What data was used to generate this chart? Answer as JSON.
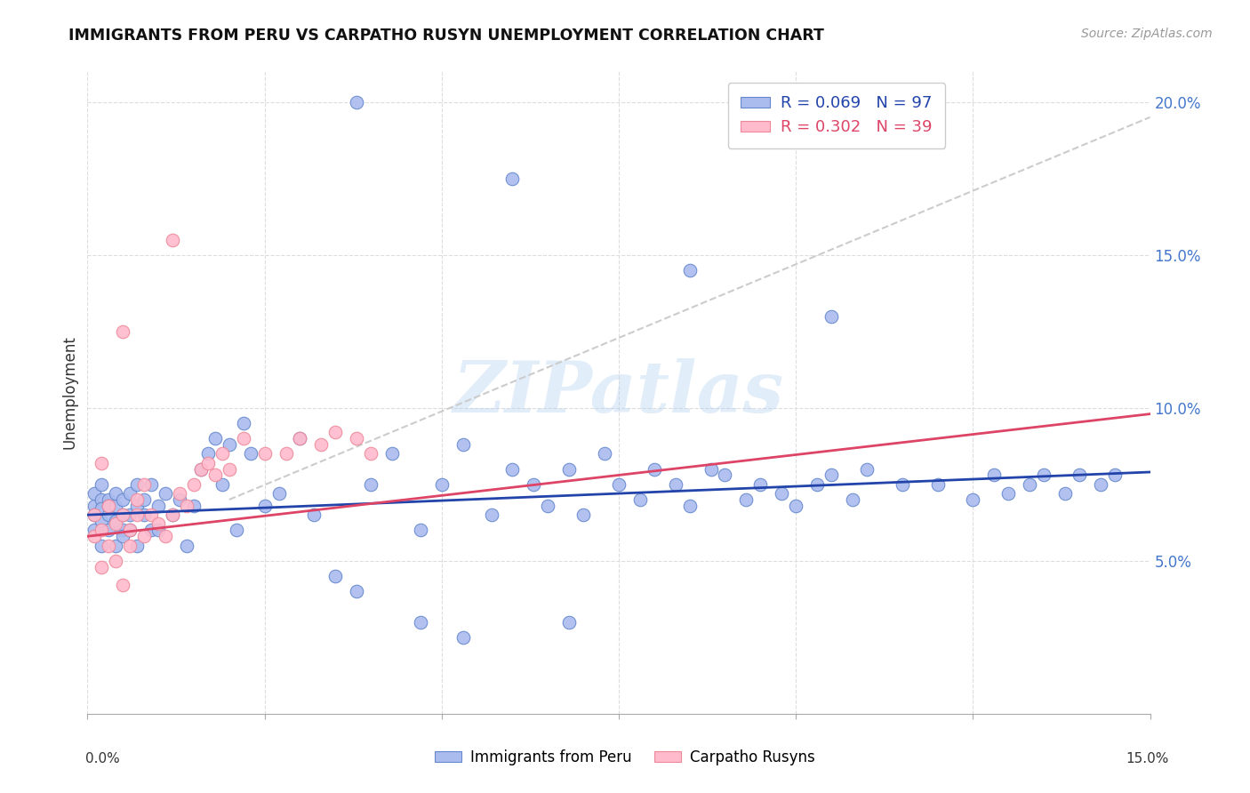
{
  "title": "IMMIGRANTS FROM PERU VS CARPATHO RUSYN UNEMPLOYMENT CORRELATION CHART",
  "source": "Source: ZipAtlas.com",
  "ylabel": "Unemployment",
  "blue_color": "#aabbee",
  "blue_edge_color": "#6688cc",
  "pink_color": "#ffbbcc",
  "pink_edge_color": "#ee8899",
  "blue_line_color": "#2244aa",
  "pink_line_color": "#dd4466",
  "dashed_line_color": "#cccccc",
  "ytick_color": "#4477cc",
  "xmin": 0.0,
  "xmax": 0.15,
  "ymin": 0.0,
  "ymax": 0.21,
  "peru_line_x": [
    0.0,
    0.15
  ],
  "peru_line_y": [
    0.065,
    0.079
  ],
  "rusyn_line_x": [
    0.0,
    0.15
  ],
  "rusyn_line_y": [
    0.058,
    0.098
  ],
  "dash_line_x": [
    0.02,
    0.15
  ],
  "dash_line_y": [
    0.07,
    0.195
  ],
  "peru_x": [
    0.001,
    0.001,
    0.001,
    0.001,
    0.002,
    0.002,
    0.002,
    0.002,
    0.002,
    0.003,
    0.003,
    0.003,
    0.003,
    0.004,
    0.004,
    0.004,
    0.004,
    0.005,
    0.005,
    0.005,
    0.005,
    0.006,
    0.006,
    0.006,
    0.007,
    0.007,
    0.007,
    0.008,
    0.008,
    0.009,
    0.009,
    0.01,
    0.01,
    0.011,
    0.012,
    0.013,
    0.014,
    0.015,
    0.016,
    0.017,
    0.018,
    0.019,
    0.02,
    0.021,
    0.022,
    0.023,
    0.025,
    0.027,
    0.03,
    0.032,
    0.035,
    0.038,
    0.04,
    0.043,
    0.047,
    0.05,
    0.053,
    0.057,
    0.06,
    0.063,
    0.065,
    0.068,
    0.07,
    0.073,
    0.075,
    0.078,
    0.08,
    0.083,
    0.085,
    0.088,
    0.09,
    0.093,
    0.095,
    0.098,
    0.1,
    0.103,
    0.105,
    0.108,
    0.11,
    0.115,
    0.12,
    0.125,
    0.128,
    0.13,
    0.133,
    0.135,
    0.138,
    0.14,
    0.143,
    0.145,
    0.038,
    0.06,
    0.085,
    0.105,
    0.047,
    0.053,
    0.068
  ],
  "peru_y": [
    0.068,
    0.065,
    0.072,
    0.06,
    0.07,
    0.063,
    0.067,
    0.055,
    0.075,
    0.065,
    0.07,
    0.06,
    0.068,
    0.063,
    0.068,
    0.055,
    0.072,
    0.06,
    0.065,
    0.07,
    0.058,
    0.065,
    0.072,
    0.06,
    0.068,
    0.075,
    0.055,
    0.065,
    0.07,
    0.06,
    0.075,
    0.068,
    0.06,
    0.072,
    0.065,
    0.07,
    0.055,
    0.068,
    0.08,
    0.085,
    0.09,
    0.075,
    0.088,
    0.06,
    0.095,
    0.085,
    0.068,
    0.072,
    0.09,
    0.065,
    0.045,
    0.04,
    0.075,
    0.085,
    0.06,
    0.075,
    0.088,
    0.065,
    0.08,
    0.075,
    0.068,
    0.08,
    0.065,
    0.085,
    0.075,
    0.07,
    0.08,
    0.075,
    0.068,
    0.08,
    0.078,
    0.07,
    0.075,
    0.072,
    0.068,
    0.075,
    0.078,
    0.07,
    0.08,
    0.075,
    0.075,
    0.07,
    0.078,
    0.072,
    0.075,
    0.078,
    0.072,
    0.078,
    0.075,
    0.078,
    0.2,
    0.175,
    0.145,
    0.13,
    0.03,
    0.025,
    0.03
  ],
  "rusyn_x": [
    0.001,
    0.001,
    0.002,
    0.002,
    0.003,
    0.003,
    0.004,
    0.004,
    0.005,
    0.005,
    0.006,
    0.006,
    0.007,
    0.007,
    0.008,
    0.008,
    0.009,
    0.01,
    0.011,
    0.012,
    0.013,
    0.014,
    0.015,
    0.016,
    0.017,
    0.018,
    0.019,
    0.02,
    0.022,
    0.025,
    0.028,
    0.03,
    0.033,
    0.035,
    0.038,
    0.04,
    0.012,
    0.005,
    0.002
  ],
  "rusyn_y": [
    0.065,
    0.058,
    0.048,
    0.06,
    0.068,
    0.055,
    0.062,
    0.05,
    0.042,
    0.065,
    0.06,
    0.055,
    0.07,
    0.065,
    0.058,
    0.075,
    0.065,
    0.062,
    0.058,
    0.065,
    0.072,
    0.068,
    0.075,
    0.08,
    0.082,
    0.078,
    0.085,
    0.08,
    0.09,
    0.085,
    0.085,
    0.09,
    0.088,
    0.092,
    0.09,
    0.085,
    0.155,
    0.125,
    0.082
  ]
}
